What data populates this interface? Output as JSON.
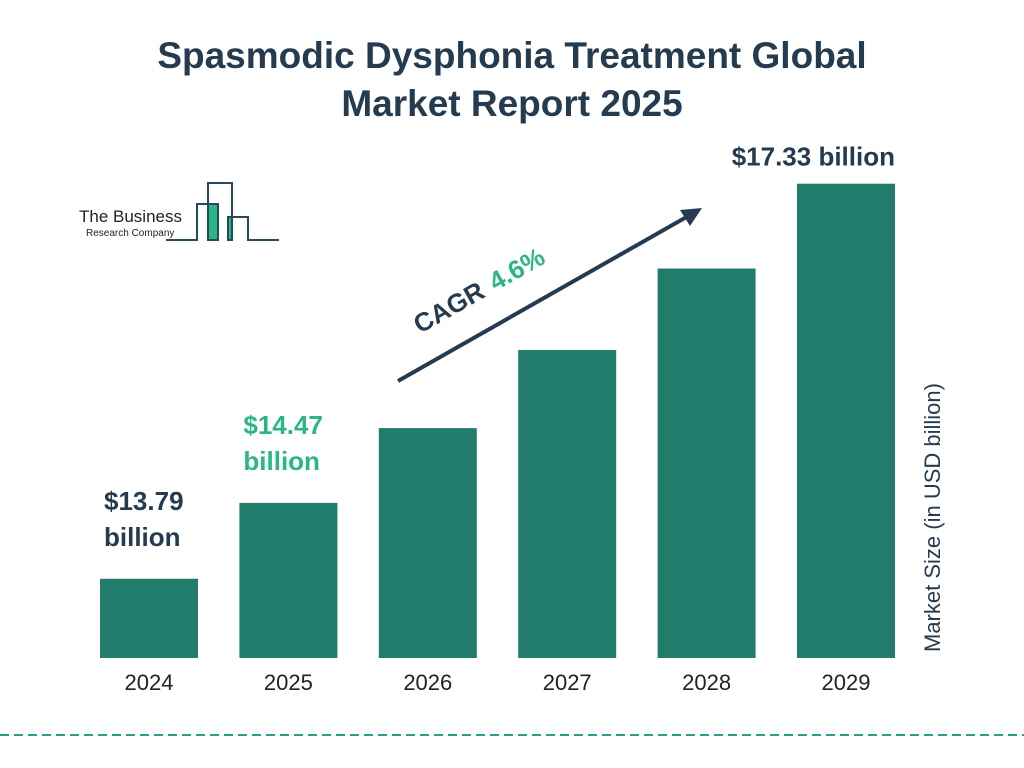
{
  "title_line1": "Spasmodic Dysphonia Treatment Global",
  "title_line2": "Market Report 2025",
  "logo": {
    "line1": "The Business",
    "line2": "Research Company"
  },
  "colors": {
    "bar": "#217c6c",
    "title": "#253b4f",
    "accent_green": "#2db58a",
    "dashed_line": "#2a9d8f"
  },
  "chart_data": {
    "type": "bar",
    "categories": [
      "2024",
      "2025",
      "2026",
      "2027",
      "2028",
      "2029"
    ],
    "values": [
      13.79,
      14.47,
      15.14,
      15.84,
      16.57,
      17.33
    ],
    "ylabel": "Market Size (in USD billion)",
    "data_labels": [
      {
        "category": "2024",
        "line1": "$13.79",
        "line2": "billion",
        "color": "#253b4f"
      },
      {
        "category": "2025",
        "line1": "$14.47",
        "line2": "billion",
        "color": "#2db58a"
      },
      {
        "category": "2029",
        "line1": "$17.33 billion",
        "line2": "",
        "color": "#253b4f"
      }
    ],
    "annotation": {
      "label": "CAGR",
      "value": "4.6%"
    },
    "grid": false
  }
}
